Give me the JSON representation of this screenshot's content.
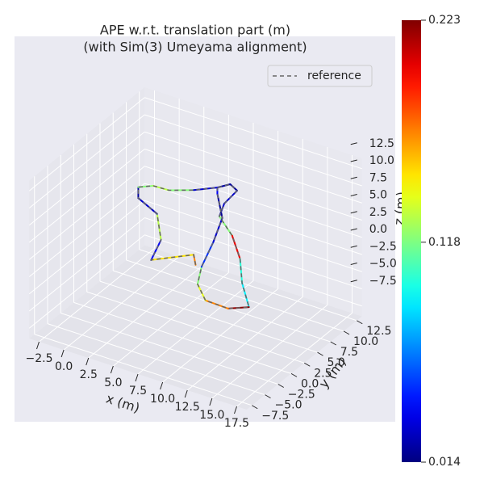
{
  "chart_data": {
    "type": "trajectory3d",
    "title": "APE w.r.t. translation part (m)",
    "subtitle": "(with Sim(3) Umeyama alignment)",
    "xlabel": "x (m)",
    "ylabel": "y (m)",
    "zlabel": "z (m)",
    "xlim": [
      -3.5,
      18.5
    ],
    "ylim": [
      -8.5,
      13.5
    ],
    "zlim": [
      -9,
      14
    ],
    "xticks": [
      {
        "value": -2.5,
        "label": "−2.5"
      },
      {
        "value": 0,
        "label": "0.0"
      },
      2.5,
      {
        "value": 5,
        "label": "5.0"
      },
      7.5,
      {
        "value": 10,
        "label": "10.0"
      },
      12.5,
      {
        "value": 15,
        "label": "15.0"
      },
      17.5
    ],
    "yticks": [
      {
        "value": -7.5,
        "label": "−7.5"
      },
      {
        "value": -5,
        "label": "−5.0"
      },
      {
        "value": -2.5,
        "label": "−2.5"
      },
      {
        "value": 0,
        "label": "0.0"
      },
      2.5,
      {
        "value": 5,
        "label": "5.0"
      },
      7.5,
      {
        "value": 10,
        "label": "10.0"
      },
      12.5
    ],
    "zticks": [
      {
        "value": -7.5,
        "label": "−7.5"
      },
      {
        "value": -5,
        "label": "−5.0"
      },
      {
        "value": -2.5,
        "label": "−2.5"
      },
      {
        "value": 0,
        "label": "0.0"
      },
      2.5,
      {
        "value": 5,
        "label": "5.0"
      },
      7.5,
      {
        "value": 10,
        "label": "10.0"
      },
      12.5
    ],
    "legend": "upper right",
    "reference": {
      "name": "reference",
      "color": "#666666"
    },
    "trajectory": {
      "x": [
        7.5,
        7.3,
        3.0,
        4.0,
        3.6,
        1.7,
        1.7,
        3.2,
        4.8,
        7.3,
        9.7,
        11.0,
        11.7,
        10.4,
        9.9,
        11.2,
        12.0,
        12.2,
        12.9,
        10.8,
        8.5,
        7.7,
        8.1,
        9.3,
        10.2,
        9.7,
        9.7
      ],
      "y": [
        2.5,
        2.5,
        2.5,
        2.5,
        2.5,
        2.5,
        2.5,
        2.5,
        2.5,
        2.5,
        2.5,
        2.5,
        2.5,
        2.5,
        2.5,
        2.5,
        2.5,
        2.5,
        2.5,
        2.5,
        2.5,
        2.5,
        2.5,
        2.5,
        2.5,
        2.5,
        2.5
      ],
      "z": [
        0.1,
        1.5,
        -1.3,
        2.1,
        5.7,
        7.1,
        8.7,
        9.6,
        9.7,
        10.9,
        12.4,
        13.5,
        12.9,
        10.4,
        8.3,
        6.1,
        3.1,
        -0.3,
        -3.5,
        -4.7,
        -4.6,
        -2.6,
        0.1,
        4.3,
        8.2,
        11.5,
        12.4
      ],
      "error": [
        0.17,
        0.15,
        0.04,
        0.13,
        0.03,
        0.02,
        0.12,
        0.13,
        0.12,
        0.03,
        0.02,
        0.02,
        0.03,
        0.03,
        0.12,
        0.2,
        0.1,
        0.09,
        0.22,
        0.17,
        0.14,
        0.12,
        0.05,
        0.03,
        0.02,
        0.04,
        0.02
      ]
    },
    "colorbar": {
      "clim": [
        0.014,
        0.223
      ],
      "ticks": [
        0.014,
        0.118,
        0.223
      ],
      "cmap": "jet"
    }
  }
}
